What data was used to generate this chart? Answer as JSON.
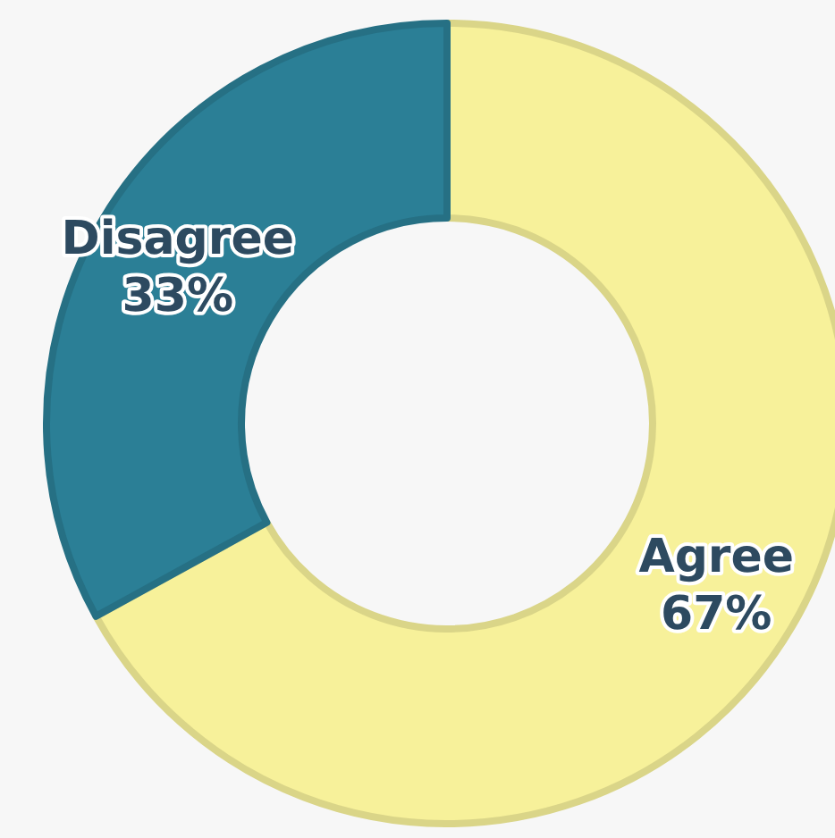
{
  "chart_data": {
    "type": "donut",
    "categories": [
      "Agree",
      "Disagree"
    ],
    "values": [
      67,
      33
    ],
    "colors": [
      "#f7f19a",
      "#2b7f96"
    ],
    "value_labels": [
      "67%",
      "33%"
    ]
  }
}
